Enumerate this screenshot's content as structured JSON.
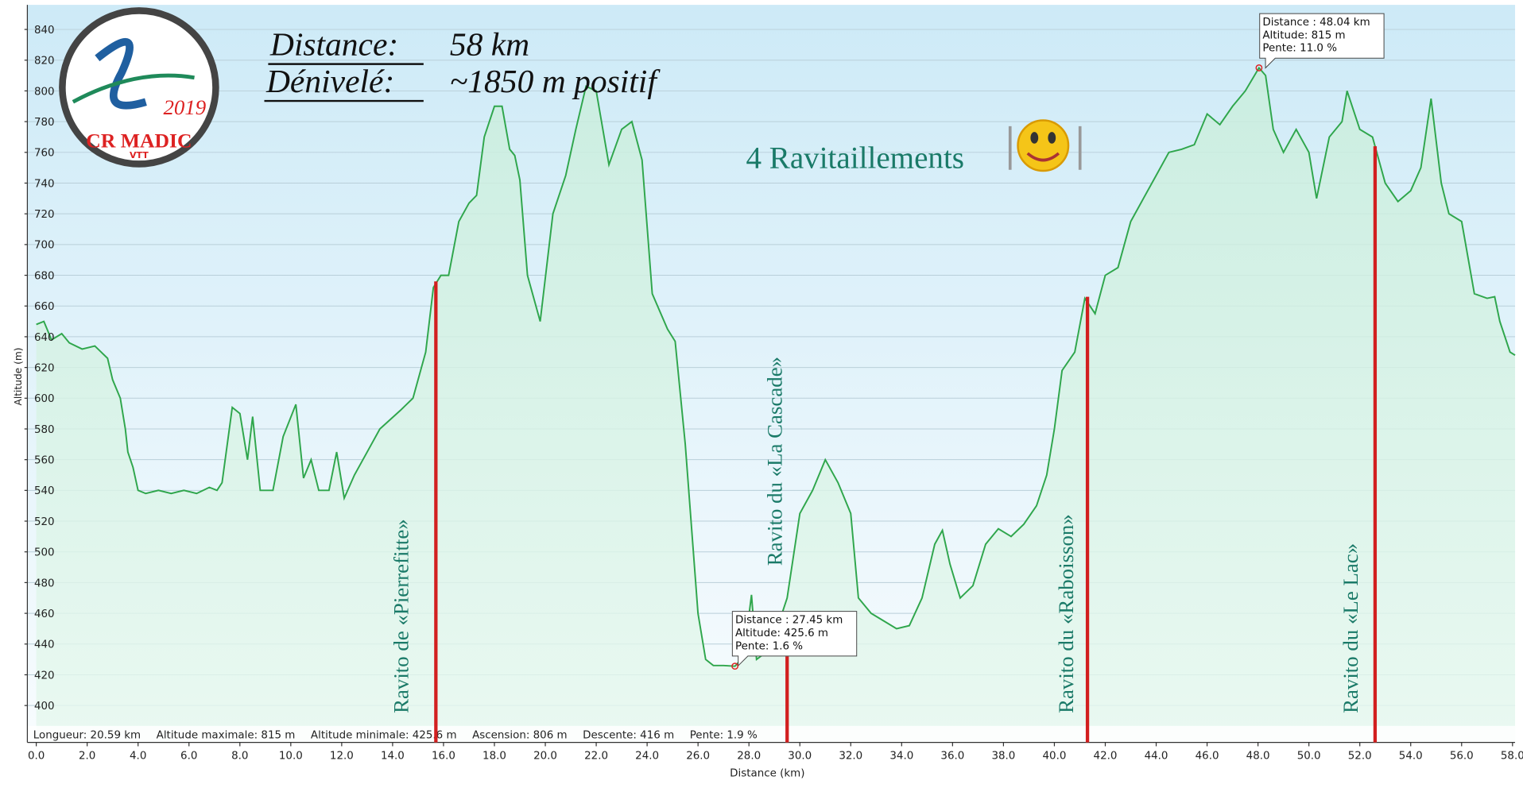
{
  "chart_data": {
    "type": "area",
    "headline": [
      {
        "label": "Distance:",
        "value": "58 km"
      },
      {
        "label": "Dénivelé:",
        "value": "~1850 m positif"
      }
    ],
    "subtitle": "4 Ravitaillements",
    "logo": {
      "name": "CR MADIC",
      "sub": "VTT",
      "year": "2019"
    },
    "xlabel": "Distance   (km)",
    "ylabel": "Altitude (m)",
    "color": "#2fa64c",
    "grid": true,
    "xlim": [
      -0.35,
      58.1
    ],
    "ylim": [
      376,
      856
    ],
    "yticks": [
      400,
      420,
      440,
      460,
      480,
      500,
      520,
      540,
      560,
      580,
      600,
      620,
      640,
      660,
      680,
      700,
      720,
      740,
      760,
      780,
      800,
      820,
      840
    ],
    "xticks": [
      {
        "value": 0,
        "label": "0.0"
      },
      {
        "value": 2,
        "label": "2.0"
      },
      {
        "value": 4,
        "label": "4.0"
      },
      {
        "value": 6,
        "label": "6.0"
      },
      {
        "value": 8,
        "label": "8.0"
      },
      {
        "value": 10,
        "label": "10.0"
      },
      {
        "value": 12,
        "label": "12.0"
      },
      {
        "value": 14,
        "label": "14.0"
      },
      {
        "value": 16,
        "label": "16.0"
      },
      {
        "value": 18,
        "label": "18.0"
      },
      {
        "value": 20,
        "label": "20.0"
      },
      {
        "value": 22,
        "label": "22.0"
      },
      {
        "value": 24,
        "label": "24.0"
      },
      {
        "value": 26,
        "label": "26.0"
      },
      {
        "value": 28,
        "label": "28.0"
      },
      {
        "value": 30,
        "label": "30.0"
      },
      {
        "value": 32,
        "label": "32.0"
      },
      {
        "value": 34,
        "label": "34.0"
      },
      {
        "value": 36,
        "label": "36.0"
      },
      {
        "value": 38,
        "label": "38.0"
      },
      {
        "value": 40,
        "label": "40.0"
      },
      {
        "value": 42,
        "label": "42.0"
      },
      {
        "value": 44,
        "label": "44.0"
      },
      {
        "value": 46,
        "label": "46.0"
      },
      {
        "value": 48,
        "label": "48.0"
      },
      {
        "value": 50,
        "label": "50.0"
      },
      {
        "value": 52,
        "label": "52.0"
      },
      {
        "value": 54,
        "label": "54.0"
      },
      {
        "value": 56,
        "label": "56.0"
      },
      {
        "value": 58,
        "label": "58.0"
      }
    ],
    "x": [
      0,
      0.3,
      0.6,
      1.0,
      1.3,
      1.8,
      2.3,
      2.8,
      3.0,
      3.3,
      3.5,
      3.6,
      3.8,
      4.0,
      4.3,
      4.8,
      5.3,
      5.8,
      6.3,
      6.8,
      7.1,
      7.3,
      7.7,
      8.0,
      8.3,
      8.5,
      8.8,
      9.3,
      9.7,
      10.2,
      10.5,
      10.8,
      11.1,
      11.5,
      11.8,
      12.1,
      12.5,
      13.0,
      13.5,
      14.3,
      14.8,
      15.3,
      15.6,
      15.9,
      16.2,
      16.6,
      17.0,
      17.3,
      17.6,
      18.0,
      18.3,
      18.6,
      18.8,
      19.0,
      19.3,
      19.8,
      20.3,
      20.8,
      21.2,
      21.6,
      22.0,
      22.5,
      23.0,
      23.4,
      23.8,
      24.2,
      24.8,
      25.1,
      25.5,
      26.0,
      26.3,
      26.6,
      27.0,
      27.45,
      27.8,
      28.1,
      28.3,
      28.7,
      29.0,
      29.5,
      30.0,
      30.5,
      31.0,
      31.5,
      32.0,
      32.3,
      32.8,
      33.3,
      33.8,
      34.3,
      34.8,
      35.3,
      35.6,
      35.9,
      36.3,
      36.8,
      37.3,
      37.8,
      38.3,
      38.8,
      39.3,
      39.7,
      40.0,
      40.3,
      40.8,
      41.2,
      41.6,
      42.0,
      42.5,
      43.0,
      43.5,
      44.0,
      44.5,
      45.0,
      45.5,
      46.0,
      46.5,
      47.0,
      47.5,
      48.04,
      48.3,
      48.6,
      49.0,
      49.5,
      50.0,
      50.3,
      50.8,
      51.3,
      51.5,
      52.0,
      52.5,
      53.0,
      53.5,
      54.0,
      54.4,
      54.8,
      55.2,
      55.5,
      56.0,
      56.5,
      57.0,
      57.3,
      57.5,
      57.9,
      58.1
    ],
    "values": [
      648,
      650,
      638,
      642,
      636,
      632,
      634,
      626,
      612,
      600,
      580,
      565,
      555,
      540,
      538,
      540,
      538,
      540,
      538,
      542,
      540,
      545,
      594,
      590,
      560,
      588,
      540,
      540,
      575,
      596,
      548,
      560,
      540,
      540,
      565,
      535,
      550,
      565,
      580,
      592,
      600,
      630,
      672,
      680,
      680,
      715,
      727,
      732,
      770,
      790,
      790,
      762,
      758,
      742,
      680,
      650,
      720,
      745,
      775,
      803,
      800,
      752,
      775,
      780,
      755,
      668,
      645,
      637,
      570,
      460,
      430,
      426,
      426,
      425.6,
      432,
      472,
      430,
      435,
      445,
      470,
      525,
      540,
      560,
      545,
      525,
      470,
      460,
      455,
      450,
      452,
      470,
      505,
      514,
      492,
      470,
      478,
      505,
      515,
      510,
      518,
      530,
      550,
      580,
      618,
      630,
      665,
      655,
      680,
      685,
      715,
      730,
      745,
      760,
      762,
      765,
      785,
      778,
      790,
      800,
      815,
      810,
      775,
      760,
      775,
      760,
      730,
      770,
      780,
      800,
      775,
      770,
      740,
      728,
      735,
      750,
      795,
      740,
      720,
      715,
      668,
      665,
      666,
      650,
      630,
      628
    ],
    "annotations": [
      {
        "text": "Ravito  de «Pierrefitte»",
        "x": 15.7,
        "y": 676
      },
      {
        "text": "Ravito  du «La Cascade»",
        "x": 29.5,
        "y": 432
      },
      {
        "text": "Ravito  du «Raboisson»",
        "x": 41.3,
        "y": 666
      },
      {
        "text": "Ravito  du «Le Lac»",
        "x": 52.6,
        "y": 764
      }
    ],
    "tooltips": [
      {
        "x": 27.45,
        "y": 425.6,
        "lines": [
          "Distance  : 27.45 km",
          "Altitude: 425.6 m",
          "Pente: 1.6 %"
        ]
      },
      {
        "x": 48.04,
        "y": 815,
        "lines": [
          "Distance  : 48.04 km",
          "Altitude: 815 m",
          "Pente: 11.0 %"
        ]
      }
    ],
    "stats": [
      "Longueur: 20.59 km",
      "Altitude maximale: 815 m",
      "Altitude minimale: 425.6 m",
      "Ascension: 806 m",
      "Descente: 416 m",
      "Pente: 1.9 %"
    ]
  }
}
